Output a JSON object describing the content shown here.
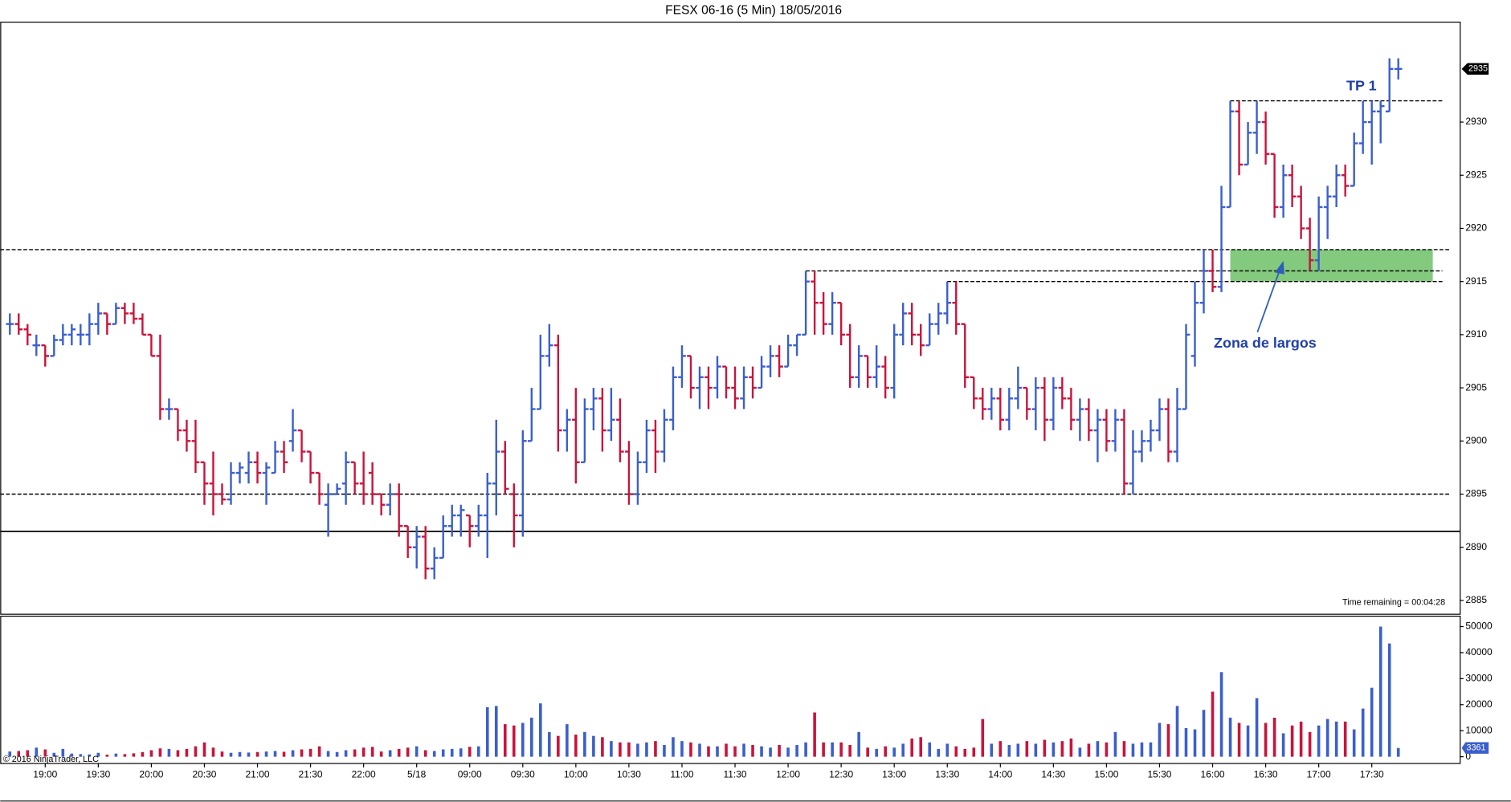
{
  "chart_data": {
    "type": "ohlc",
    "title": "FESX 06-16 (5 Min)  18/05/2016",
    "categories": [
      null,
      null,
      null,
      null,
      "19:00",
      null,
      null,
      null,
      null,
      null,
      "19:30",
      null,
      null,
      null,
      null,
      null,
      "20:00",
      null,
      null,
      null,
      null,
      null,
      "20:30",
      null,
      null,
      null,
      null,
      null,
      "21:00",
      null,
      null,
      null,
      null,
      null,
      "21:30",
      null,
      null,
      null,
      null,
      null,
      "22:00",
      null,
      null,
      null,
      null,
      null,
      "5/18",
      null,
      null,
      null,
      null,
      null,
      "09:00",
      null,
      null,
      null,
      null,
      null,
      "09:30",
      null,
      null,
      null,
      null,
      null,
      "10:00",
      null,
      null,
      null,
      null,
      null,
      "10:30",
      null,
      null,
      null,
      null,
      null,
      "11:00",
      null,
      null,
      null,
      null,
      null,
      "11:30",
      null,
      null,
      null,
      null,
      null,
      "12:00",
      null,
      null,
      null,
      null,
      null,
      "12:30",
      null,
      null,
      null,
      null,
      null,
      "13:00",
      null,
      null,
      null,
      null,
      null,
      "13:30",
      null,
      null,
      null,
      null,
      null,
      "14:00",
      null,
      null,
      null,
      null,
      null,
      "14:30",
      null,
      null,
      null,
      null,
      null,
      "15:00",
      null,
      null,
      null,
      null,
      null,
      "15:30",
      null,
      null,
      null,
      null,
      null,
      "16:00",
      null,
      null,
      null,
      null,
      null,
      "16:30",
      null,
      null,
      null,
      null,
      null,
      "17:00",
      null,
      null,
      null,
      null,
      null,
      "17:30",
      null,
      null,
      null
    ],
    "ohlc": [
      [
        2911,
        2912,
        2910,
        2911
      ],
      [
        2911,
        2912,
        2910,
        2910.5
      ],
      [
        2910.5,
        2911,
        2909,
        2910
      ],
      [
        2909,
        2910,
        2908,
        2909
      ],
      [
        2909,
        2909,
        2907,
        2908
      ],
      [
        2908,
        2910,
        2908,
        2909.5
      ],
      [
        2909.5,
        2911,
        2909,
        2910
      ],
      [
        2910,
        2911,
        2909,
        2910.5
      ],
      [
        2910,
        2911,
        2909,
        2910
      ],
      [
        2910,
        2912,
        2909,
        2911
      ],
      [
        2911,
        2913,
        2910,
        2912
      ],
      [
        2912,
        2912,
        2910,
        2911
      ],
      [
        2911,
        2913,
        2911,
        2912.5
      ],
      [
        2912.5,
        2913,
        2911,
        2912
      ],
      [
        2912,
        2913,
        2911,
        2911.5
      ],
      [
        2911.5,
        2912,
        2910,
        2910
      ],
      [
        2910,
        2910,
        2908,
        2908
      ],
      [
        2908,
        2910,
        2902,
        2903
      ],
      [
        2903,
        2904,
        2902,
        2903
      ],
      [
        2903,
        2903,
        2900,
        2901
      ],
      [
        2901,
        2902,
        2899,
        2900
      ],
      [
        2900,
        2902,
        2897,
        2898
      ],
      [
        2898,
        2898,
        2894,
        2896
      ],
      [
        2896,
        2899,
        2893,
        2895
      ],
      [
        2895,
        2896,
        2894,
        2894.5
      ],
      [
        2894.5,
        2898,
        2894,
        2897
      ],
      [
        2897,
        2898,
        2896,
        2897.5
      ],
      [
        2897,
        2899,
        2896,
        2898
      ],
      [
        2898,
        2899,
        2896,
        2897
      ],
      [
        2897,
        2898,
        2894,
        2897.5
      ],
      [
        2897,
        2900,
        2897,
        2899
      ],
      [
        2899,
        2900,
        2897,
        2898
      ],
      [
        2900,
        2903,
        2899,
        2901
      ],
      [
        2901,
        2901,
        2898,
        2899
      ],
      [
        2899,
        2899,
        2896,
        2897
      ],
      [
        2897,
        2897,
        2894,
        2895
      ],
      [
        2894,
        2896,
        2891,
        2895
      ],
      [
        2895,
        2896,
        2895,
        2895.5
      ],
      [
        2896,
        2899,
        2894,
        2898
      ],
      [
        2898,
        2898,
        2895,
        2896
      ],
      [
        2896,
        2899,
        2894,
        2895
      ],
      [
        2897,
        2898,
        2894,
        2895
      ],
      [
        2895,
        2895,
        2893,
        2894
      ],
      [
        2894,
        2896,
        2893,
        2895
      ],
      [
        2895,
        2896,
        2891,
        2892
      ],
      [
        2892,
        2892,
        2889,
        2890
      ],
      [
        2890,
        2892,
        2888,
        2891
      ],
      [
        2891,
        2892,
        2887,
        2888
      ],
      [
        2888,
        2890,
        2887,
        2889
      ],
      [
        2889,
        2893,
        2889,
        2892
      ],
      [
        2892,
        2894,
        2891,
        2893
      ],
      [
        2893,
        2894,
        2891,
        2893.5
      ],
      [
        2893,
        2893,
        2890,
        2892
      ],
      [
        2892,
        2894,
        2891,
        2893
      ],
      [
        2893,
        2897,
        2889,
        2896
      ],
      [
        2896,
        2902,
        2893,
        2899
      ],
      [
        2899,
        2900,
        2895,
        2895.5
      ],
      [
        2895,
        2896,
        2890,
        2893
      ],
      [
        2893,
        2901,
        2891,
        2900
      ],
      [
        2900,
        2905,
        2900,
        2903
      ],
      [
        2903,
        2910,
        2903,
        2908
      ],
      [
        2908,
        2911,
        2907,
        2909
      ],
      [
        2909,
        2910,
        2899,
        2901
      ],
      [
        2901,
        2903,
        2899,
        2902
      ],
      [
        2902,
        2905,
        2896,
        2898
      ],
      [
        2898,
        2904,
        2898,
        2903
      ],
      [
        2903,
        2905,
        2901,
        2904
      ],
      [
        2904,
        2905,
        2899,
        2901
      ],
      [
        2901,
        2905,
        2900,
        2902
      ],
      [
        2902,
        2904,
        2898,
        2899
      ],
      [
        2899,
        2900,
        2894,
        2895
      ],
      [
        2895,
        2899,
        2894,
        2898
      ],
      [
        2898,
        2902,
        2897,
        2901
      ],
      [
        2901,
        2902,
        2897,
        2899
      ],
      [
        2899,
        2903,
        2898,
        2902
      ],
      [
        2902,
        2907,
        2901,
        2906
      ],
      [
        2906,
        2909,
        2905,
        2908
      ],
      [
        2908,
        2908,
        2904,
        2905
      ],
      [
        2905,
        2907,
        2903,
        2906
      ],
      [
        2906,
        2907,
        2903,
        2905
      ],
      [
        2905,
        2908,
        2904,
        2907
      ],
      [
        2907,
        2907,
        2904,
        2905
      ],
      [
        2905,
        2907,
        2903,
        2904
      ],
      [
        2904,
        2907,
        2903,
        2906
      ],
      [
        2906,
        2907,
        2904,
        2905
      ],
      [
        2905,
        2908,
        2905,
        2907
      ],
      [
        2907,
        2909,
        2906,
        2908
      ],
      [
        2908,
        2909,
        2906,
        2907
      ],
      [
        2907,
        2910,
        2907,
        2909
      ],
      [
        2909,
        2910,
        2908,
        2910
      ],
      [
        2910,
        2916,
        2910,
        2915
      ],
      [
        2915,
        2916,
        2910,
        2913
      ],
      [
        2913,
        2914,
        2910,
        2911
      ],
      [
        2911,
        2914,
        2910,
        2913
      ],
      [
        2913,
        2913,
        2909,
        2910
      ],
      [
        2910,
        2911,
        2905,
        2906
      ],
      [
        2906,
        2909,
        2905,
        2908
      ],
      [
        2908,
        2908,
        2905,
        2906
      ],
      [
        2906,
        2909,
        2905,
        2907
      ],
      [
        2907,
        2908,
        2904,
        2905
      ],
      [
        2905,
        2911,
        2904,
        2910
      ],
      [
        2910,
        2913,
        2909,
        2912
      ],
      [
        2912,
        2913,
        2909,
        2910
      ],
      [
        2910,
        2911,
        2908,
        2909
      ],
      [
        2909,
        2912,
        2909,
        2911
      ],
      [
        2911,
        2913,
        2910,
        2912
      ],
      [
        2912,
        2915,
        2911,
        2913
      ],
      [
        2913,
        2915,
        2910,
        2911
      ],
      [
        2911,
        2911,
        2905,
        2906
      ],
      [
        2906,
        2906,
        2903,
        2904
      ],
      [
        2904,
        2905,
        2902,
        2903
      ],
      [
        2903,
        2905,
        2902,
        2904
      ],
      [
        2904,
        2905,
        2901,
        2902
      ],
      [
        2902,
        2905,
        2901,
        2904
      ],
      [
        2904,
        2907,
        2903,
        2905
      ],
      [
        2905,
        2905,
        2902,
        2903
      ],
      [
        2903,
        2906,
        2901,
        2905
      ],
      [
        2905,
        2906,
        2900,
        2902
      ],
      [
        2902,
        2906,
        2901,
        2905
      ],
      [
        2905,
        2906,
        2903,
        2904
      ],
      [
        2904,
        2905,
        2901,
        2902
      ],
      [
        2902,
        2904,
        2900,
        2903
      ],
      [
        2903,
        2904,
        2900,
        2901
      ],
      [
        2901,
        2903,
        2898,
        2902
      ],
      [
        2902,
        2903,
        2899,
        2900
      ],
      [
        2900,
        2903,
        2899,
        2902
      ],
      [
        2902,
        2903,
        2895,
        2896
      ],
      [
        2896,
        2901,
        2895,
        2899
      ],
      [
        2899,
        2901,
        2898,
        2900
      ],
      [
        2900,
        2902,
        2899,
        2901
      ],
      [
        2901,
        2904,
        2900,
        2903
      ],
      [
        2903,
        2904,
        2898,
        2899
      ],
      [
        2899,
        2905,
        2898,
        2903
      ],
      [
        2903,
        2911,
        2903,
        2910
      ],
      [
        2908,
        2915,
        2907,
        2913
      ],
      [
        2913,
        2918,
        2912,
        2916
      ],
      [
        2916,
        2918,
        2914,
        2914.5
      ],
      [
        2914.5,
        2924,
        2914,
        2922
      ],
      [
        2922,
        2932,
        2922,
        2931
      ],
      [
        2931,
        2932,
        2925,
        2926
      ],
      [
        2926,
        2930,
        2926,
        2929
      ],
      [
        2929,
        2932,
        2927,
        2930
      ],
      [
        2930,
        2931,
        2926,
        2927
      ],
      [
        2927,
        2927,
        2921,
        2922
      ],
      [
        2922,
        2926,
        2921,
        2925
      ],
      [
        2925,
        2926,
        2922,
        2923
      ],
      [
        2923,
        2924,
        2919,
        2920
      ],
      [
        2920,
        2921,
        2916,
        2917
      ],
      [
        2917,
        2923,
        2916,
        2922
      ],
      [
        2922,
        2924,
        2919,
        2923
      ],
      [
        2923,
        2926,
        2922,
        2925
      ],
      [
        2925,
        2926,
        2923,
        2924
      ],
      [
        2924,
        2929,
        2924,
        2928
      ],
      [
        2928,
        2932,
        2927,
        2930
      ],
      [
        2930,
        2932,
        2926,
        2931
      ],
      [
        2931,
        2932,
        2928,
        2931.5
      ],
      [
        2931,
        2936,
        2931,
        2935
      ],
      [
        2935,
        2936,
        2934,
        2935
      ]
    ],
    "up_color": "#3a5fcd",
    "down_color": "#c8143c",
    "ylim": [
      2883.7,
      2939.4
    ],
    "yticks": [
      2885,
      2890,
      2895,
      2900,
      2905,
      2910,
      2915,
      2920,
      2925,
      2930
    ],
    "last_price": 2935,
    "levels": [
      {
        "value": 2918,
        "style": "dashed",
        "start": 0
      },
      {
        "value": 2916,
        "style": "dashed",
        "start": 90
      },
      {
        "value": 2915,
        "style": "dashed",
        "start": 106
      },
      {
        "value": 2895,
        "style": "dashed",
        "start": 0
      },
      {
        "value": 2891.5,
        "style": "solid",
        "start": 0
      },
      {
        "value": 2932,
        "style": "dashed",
        "start": 138,
        "label": "TP 1"
      }
    ],
    "zone": {
      "low": 2915,
      "high": 2918,
      "start": 138,
      "label": "Zona de largos",
      "color": "#6dbf67"
    },
    "volume": {
      "values": [
        2000,
        2200,
        2500,
        3500,
        2800,
        1500,
        3000,
        1200,
        1000,
        900,
        1500,
        800,
        1200,
        1000,
        1300,
        1800,
        2500,
        3200,
        3000,
        2500,
        3000,
        4000,
        5500,
        3500,
        2000,
        1500,
        1800,
        1600,
        1800,
        2000,
        2200,
        1900,
        2500,
        2800,
        3000,
        4000,
        2200,
        1800,
        2500,
        2800,
        3500,
        3800,
        2000,
        2500,
        3000,
        3500,
        4000,
        2500,
        2200,
        2800,
        3000,
        3200,
        3800,
        4000,
        19000,
        19500,
        12500,
        12000,
        13000,
        15000,
        20500,
        9500,
        8000,
        12500,
        8500,
        9500,
        8000,
        7500,
        6000,
        5500,
        5500,
        5000,
        5500,
        6000,
        4500,
        7500,
        6000,
        5500,
        5000,
        4000,
        4000,
        5000,
        4000,
        5000,
        4500,
        4000,
        3500,
        4500,
        3500,
        4500,
        5500,
        17000,
        5500,
        5500,
        5500,
        4500,
        9500,
        3500,
        3000,
        4000,
        3500,
        5000,
        7000,
        7500,
        5500,
        3000,
        5000,
        4000,
        3000,
        3500,
        14500,
        5000,
        6000,
        4500,
        5000,
        6000,
        5000,
        6500,
        5500,
        6000,
        7000,
        3500,
        5000,
        6000,
        5500,
        9500,
        6000,
        5000,
        5500,
        5500,
        13000,
        12500,
        19500,
        11000,
        10500,
        18000,
        25000,
        32500,
        15000,
        13000,
        12000,
        22500,
        13000,
        15000,
        9000,
        12000,
        13500,
        9500,
        12000,
        14500,
        13500,
        13500,
        10500,
        18500,
        26500,
        50000,
        43500,
        3361
      ],
      "ylim": [
        -2600,
        54000
      ],
      "yticks": [
        0,
        10000,
        20000,
        30000,
        40000,
        50000
      ],
      "last": 3361
    },
    "status": "Time remaining = 00:04:28",
    "copyright": "© 2016 NinjaTrader, LLC"
  }
}
